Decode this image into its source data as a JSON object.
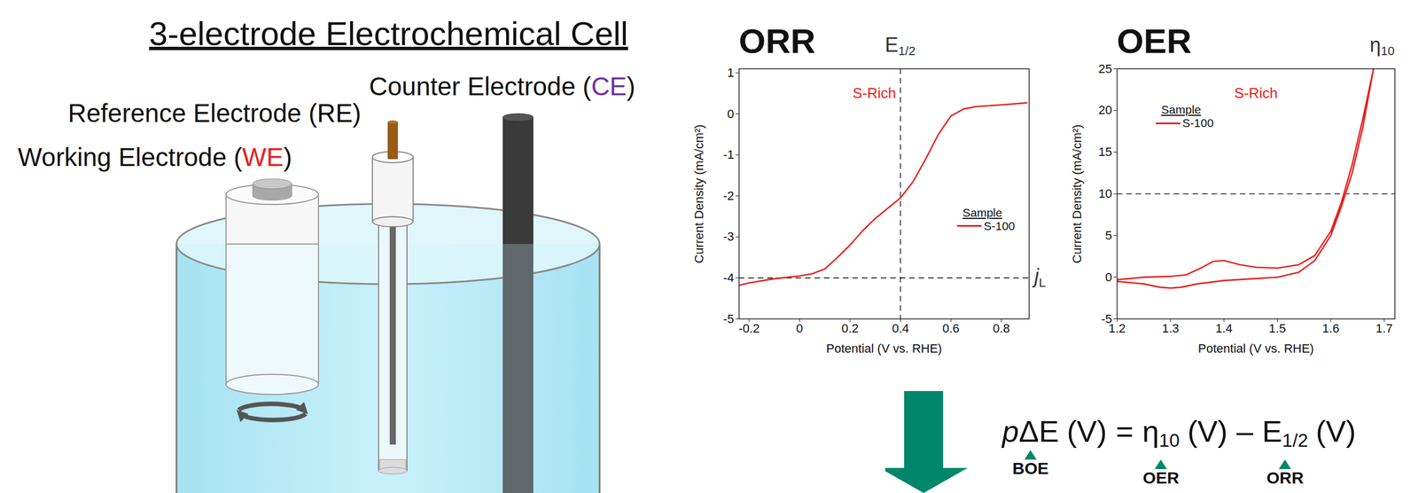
{
  "diagram": {
    "title": "3-electrode Electrochemical Cell",
    "labels": [
      {
        "prefix": "Counter Electrode (",
        "abbr": "CE",
        "suffix": ")",
        "abbr_color": "#7030a0"
      },
      {
        "prefix": "Reference Electrode (",
        "abbr": "RE",
        "suffix": ")",
        "abbr_color": "#000000"
      },
      {
        "prefix": "Working Electrode (",
        "abbr": "WE",
        "suffix": ")",
        "abbr_color": "#e8201e"
      }
    ]
  },
  "chart_data": [
    {
      "type": "line",
      "title": "ORR",
      "annotation": "S-Rich",
      "annotation_color": "#e8201e",
      "x_label": "Potential (V vs. RHE)",
      "y_label": "Current Density (mA/cm²)",
      "xlim": [
        -0.24,
        0.91
      ],
      "xticks": [
        -0.2,
        0,
        0.2,
        0.4,
        0.6,
        0.8
      ],
      "ylim": [
        -5,
        1.1
      ],
      "yticks": [
        -5,
        -4,
        -3,
        -2,
        -1,
        0,
        1
      ],
      "legend": "right",
      "legend_title": "Sample",
      "reference_lines": [
        {
          "axis": "x",
          "value": 0.4,
          "label": "E",
          "label_sub": "1/2",
          "line_style": "dashed"
        },
        {
          "axis": "y",
          "value": -4,
          "label": "j",
          "label_sub": "L",
          "line_style": "dashed"
        }
      ],
      "series": [
        {
          "name": "S-100",
          "color": "#e8201e",
          "x": [
            -0.24,
            -0.2,
            -0.1,
            0,
            0.05,
            0.1,
            0.15,
            0.2,
            0.25,
            0.3,
            0.35,
            0.4,
            0.45,
            0.5,
            0.55,
            0.6,
            0.65,
            0.7,
            0.8,
            0.9
          ],
          "values": [
            -4.18,
            -4.12,
            -4.02,
            -3.95,
            -3.9,
            -3.78,
            -3.5,
            -3.2,
            -2.85,
            -2.55,
            -2.3,
            -2.05,
            -1.65,
            -1.1,
            -0.5,
            -0.05,
            0.12,
            0.18,
            0.22,
            0.27
          ]
        }
      ]
    },
    {
      "type": "line",
      "title": "OER",
      "annotation": "S-Rich",
      "annotation_color": "#e8201e",
      "x_label": "Potential (V vs. RHE)",
      "y_label": "Current Density (mA/cm²)",
      "xlim": [
        1.2,
        1.72
      ],
      "xticks": [
        1.2,
        1.3,
        1.4,
        1.5,
        1.6,
        1.7
      ],
      "ylim": [
        -5,
        25
      ],
      "yticks": [
        -5,
        0,
        5,
        10,
        15,
        20,
        25
      ],
      "legend": "upper left",
      "legend_title": "Sample",
      "reference_lines": [
        {
          "axis": "y",
          "value": 10,
          "label": "η",
          "label_sub": "10",
          "line_style": "dashed"
        }
      ],
      "series": [
        {
          "name": "S-100",
          "color": "#e8201e",
          "x": [
            1.2,
            1.25,
            1.3,
            1.33,
            1.36,
            1.38,
            1.4,
            1.43,
            1.46,
            1.5,
            1.54,
            1.57,
            1.6,
            1.62,
            1.64,
            1.66,
            1.68,
            1.66,
            1.64,
            1.62,
            1.6,
            1.57,
            1.54,
            1.5,
            1.45,
            1.4,
            1.35,
            1.32,
            1.3,
            1.28,
            1.25,
            1.2
          ],
          "values": [
            -0.3,
            0,
            0.1,
            0.3,
            1.2,
            1.9,
            2.0,
            1.5,
            1.2,
            1.1,
            1.5,
            2.6,
            5.5,
            9,
            13.5,
            19,
            25,
            18,
            12.5,
            8.5,
            5,
            2,
            0.6,
            0,
            -0.2,
            -0.4,
            -0.8,
            -1.2,
            -1.3,
            -1.2,
            -0.8,
            -0.5
          ]
        }
      ]
    }
  ],
  "formula": {
    "terms": [
      {
        "prefix": "p",
        "symbol": "ΔE",
        "unit": "(V)",
        "label": "BOE"
      },
      {
        "symbol": "η",
        "sub": "10",
        "unit": "(V)",
        "label": "OER"
      },
      {
        "symbol": "E",
        "sub": "1/2",
        "unit": "(V)",
        "label": "ORR"
      }
    ],
    "operators": [
      "=",
      "–"
    ],
    "color": "#00876b"
  }
}
